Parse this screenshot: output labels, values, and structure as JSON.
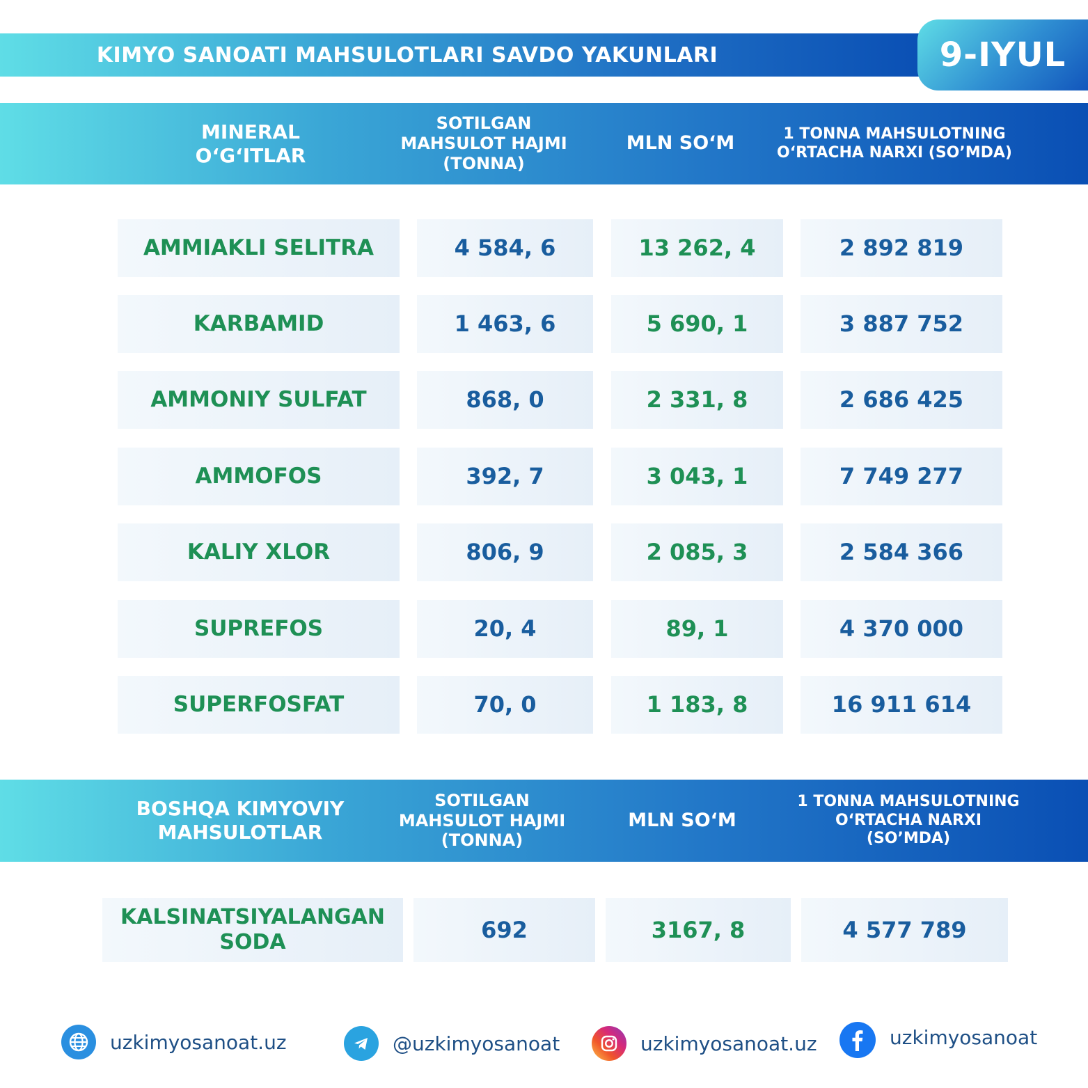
{
  "header": {
    "title": "KIMYO SANOATI MAHSULOTLARI SAVDO YAKUNLARI",
    "date": "9-IYUL"
  },
  "table1": {
    "headers": [
      "MINERAL O‘G‘ITLAR",
      "SOTILGAN MAHSULOT HAJMI (TONNA)",
      "MLN SO‘M",
      "1 TONNA MAHSULOTNING O‘RTACHA NARXI (SO’MDA)"
    ],
    "rows": [
      {
        "name": "AMMIAKLI SELITRA",
        "volume": "4 584, 6",
        "mln": "13 262, 4",
        "price": "2 892 819"
      },
      {
        "name": "KARBAMID",
        "volume": "1 463, 6",
        "mln": "5 690, 1",
        "price": "3 887 752"
      },
      {
        "name": "AMMONIY SULFAT",
        "volume": "868, 0",
        "mln": "2 331, 8",
        "price": "2 686 425"
      },
      {
        "name": "AMMOFOS",
        "volume": "392, 7",
        "mln": "3 043, 1",
        "price": "7 749 277"
      },
      {
        "name": "KALIY XLOR",
        "volume": "806, 9",
        "mln": "2 085, 3",
        "price": "2 584 366"
      },
      {
        "name": "SUPREFOS",
        "volume": "20, 4",
        "mln": "89, 1",
        "price": "4 370 000"
      },
      {
        "name": "SUPERFOSFAT",
        "volume": "70, 0",
        "mln": "1 183, 8",
        "price": "16 911 614"
      }
    ]
  },
  "table2": {
    "headers": [
      "BOSHQA KIMYOVIY MAHSULOTLAR",
      "SOTILGAN MAHSULOT HAJMI (TONNA)",
      "MLN SO‘M",
      "1 TONNA MAHSULOTNING O‘RTACHA NARXI (SO’MDA)"
    ],
    "rows": [
      {
        "name": "KALSINATSIYALANGAN SODA",
        "volume": "692",
        "mln": "3167, 8",
        "price": "4 577 789"
      }
    ]
  },
  "footer": {
    "items": [
      {
        "icon": "globe-icon",
        "text": "uzkimyosanoat.uz",
        "color": "#2a8fe0"
      },
      {
        "icon": "telegram-icon",
        "text": "@uzkimyosanoat",
        "color": "#2aa3e0"
      },
      {
        "icon": "instagram-icon",
        "text": "uzkimyosanoat.uz",
        "color": "#d6297a"
      },
      {
        "icon": "facebook-icon",
        "text": "uzkimyosanoat",
        "color": "#1877f2"
      }
    ]
  }
}
